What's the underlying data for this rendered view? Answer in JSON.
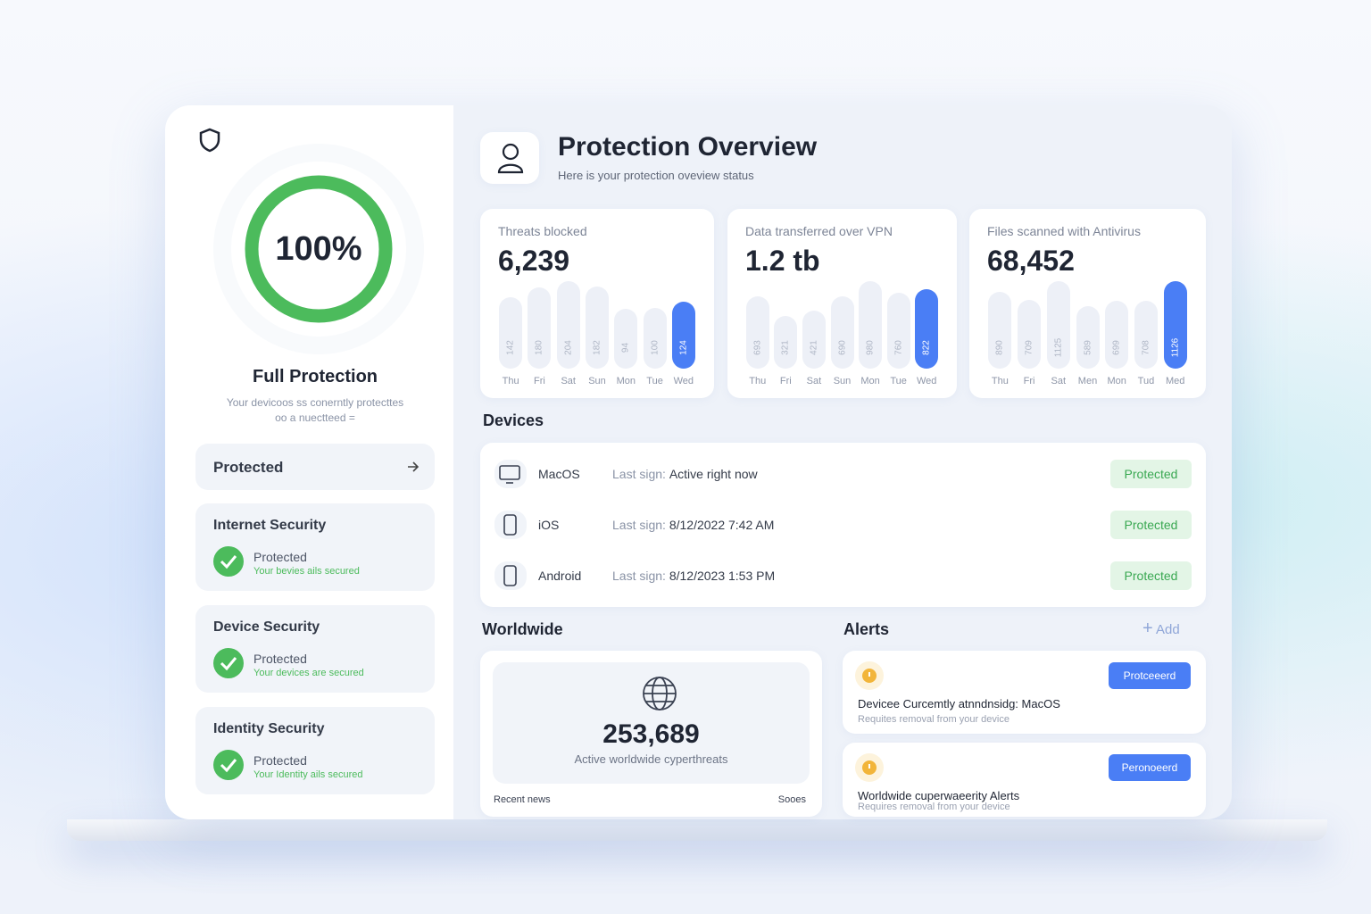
{
  "sidebar": {
    "score": "100%",
    "title": "Full Protection",
    "subtitle": [
      "Your devicoos ss conerntly protecttes",
      "oo a nuectteed ="
    ],
    "button": "Protected",
    "cards": [
      {
        "title": "Internet Security",
        "status": "Protected",
        "note": "Your bevies ails secured"
      },
      {
        "title": "Device Security",
        "status": "Protected",
        "note": "Your devices are secured"
      },
      {
        "title": "Identity Security",
        "status": "Protected",
        "note": "Your Identity ails secured"
      }
    ]
  },
  "header": {
    "title": "Protection Overview",
    "subtitle": "Here is your protection oveview status"
  },
  "stats": [
    {
      "label": "Threats blocked",
      "value": "6,239",
      "bars": [
        {
          "day": "Thu",
          "value": 142
        },
        {
          "day": "Fri",
          "value": 180
        },
        {
          "day": "Sat",
          "value": 204
        },
        {
          "day": "Sun",
          "value": 182
        },
        {
          "day": "Mon",
          "value": 94
        },
        {
          "day": "Tue",
          "value": 100
        },
        {
          "day": "Wed",
          "value": 124
        }
      ]
    },
    {
      "label": "Data transferred over VPN",
      "value": "1.2 tb",
      "bars": [
        {
          "day": "Thu",
          "value": 693
        },
        {
          "day": "Fri",
          "value": 321
        },
        {
          "day": "Sat",
          "value": 421
        },
        {
          "day": "Sun",
          "value": 690
        },
        {
          "day": "Mon",
          "value": 980
        },
        {
          "day": "Tue",
          "value": 760
        },
        {
          "day": "Wed",
          "value": 822
        }
      ]
    },
    {
      "label": "Files scanned with Antivirus",
      "value": "68,452",
      "bars": [
        {
          "day": "Thu",
          "value": 890
        },
        {
          "day": "Fri",
          "value": 709
        },
        {
          "day": "Sat",
          "value": 1125
        },
        {
          "day": "Men",
          "value": 589
        },
        {
          "day": "Mon",
          "value": 699
        },
        {
          "day": "Tud",
          "value": 708
        },
        {
          "day": "Med",
          "value": 1126
        }
      ]
    }
  ],
  "devices": {
    "heading": "Devices",
    "rows": [
      {
        "name": "MacOS",
        "last_label": "Last sign:",
        "last_value": "Active right now",
        "status": "Protected"
      },
      {
        "name": "iOS",
        "last_label": "Last sign:",
        "last_value": "8/12/2022 7:42 AM",
        "status": "Protected"
      },
      {
        "name": "Android",
        "last_label": "Last sign:",
        "last_value": "8/12/2023 1:53 PM",
        "status": "Protected"
      }
    ]
  },
  "worldwide": {
    "heading": "Worldwide",
    "value": "253,689",
    "caption": "Active worldwide cyperthreats",
    "footer_left": "Recent news",
    "footer_right": "Sooes"
  },
  "alerts": {
    "heading": "Alerts",
    "add": "Add",
    "items": [
      {
        "title": "Devicee Curcemtly atnndnsidg: MacOS",
        "note": "Requites removal from your device",
        "action": "Protceeerd"
      },
      {
        "title": "Worldwide cuperwaeerity Alerts",
        "note": "Requires removal from your device",
        "action": "Peronoeerd"
      }
    ]
  }
}
